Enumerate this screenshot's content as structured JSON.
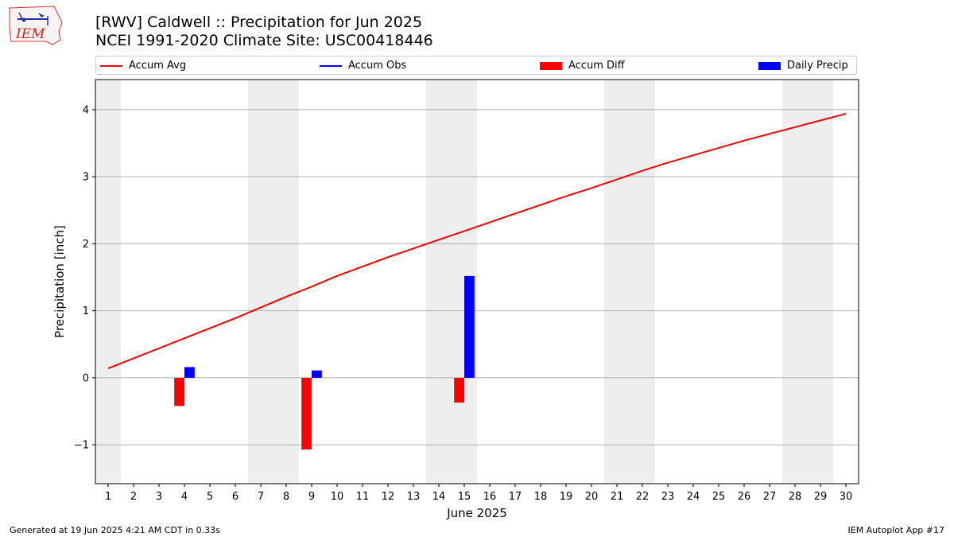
{
  "header": {
    "title_line1": "[RWV] Caldwell :: Precipitation for Jun 2025",
    "title_line2": "NCEI 1991-2020 Climate Site: USC00418446",
    "logo_text": "IEM"
  },
  "legend": {
    "items": [
      {
        "label": "Accum Avg",
        "kind": "line",
        "color": "#ff0000"
      },
      {
        "label": "Accum Obs",
        "kind": "line",
        "color": "#0000ff"
      },
      {
        "label": "Accum Diff",
        "kind": "bar",
        "color": "#ff0000"
      },
      {
        "label": "Daily Precip",
        "kind": "bar",
        "color": "#0000ff"
      }
    ]
  },
  "footer": {
    "generated": "Generated at 19 Jun 2025 4:21 AM CDT in 0.33s",
    "app": "IEM Autoplot App #17"
  },
  "chart_data": {
    "type": "bar",
    "title": "[RWV] Caldwell :: Precipitation for Jun 2025",
    "subtitle": "NCEI 1991-2020 Climate Site: USC00418446",
    "xlabel": "June 2025",
    "ylabel": "Precipitation [inch]",
    "xlim": [
      0.5,
      30.5
    ],
    "ylim": [
      -1.58,
      4.45
    ],
    "yticks": [
      -1,
      0,
      1,
      2,
      3,
      4
    ],
    "ytick_labels": [
      "−1",
      "0",
      "1",
      "2",
      "3",
      "4"
    ],
    "x": [
      1,
      2,
      3,
      4,
      5,
      6,
      7,
      8,
      9,
      10,
      11,
      12,
      13,
      14,
      15,
      16,
      17,
      18,
      19,
      20,
      21,
      22,
      23,
      24,
      25,
      26,
      27,
      28,
      29,
      30
    ],
    "xtick_labels": [
      "1",
      "2",
      "3",
      "4",
      "5",
      "6",
      "7",
      "8",
      "9",
      "10",
      "11",
      "12",
      "13",
      "14",
      "15",
      "16",
      "17",
      "18",
      "19",
      "20",
      "21",
      "22",
      "23",
      "24",
      "25",
      "26",
      "27",
      "28",
      "29",
      "30"
    ],
    "grid": "y",
    "legend_position": "top",
    "weekend_bands": [
      [
        0.5,
        1.5
      ],
      [
        6.5,
        8.5
      ],
      [
        13.5,
        15.5
      ],
      [
        20.5,
        22.5
      ],
      [
        27.5,
        29.5
      ]
    ],
    "weekend_color": "#eeeeee",
    "series": [
      {
        "name": "Accum Avg",
        "kind": "line",
        "color": "#ff0000",
        "values": [
          0.14,
          0.29,
          0.44,
          0.59,
          0.74,
          0.89,
          1.05,
          1.21,
          1.36,
          1.52,
          1.66,
          1.8,
          1.93,
          2.06,
          2.19,
          2.32,
          2.45,
          2.58,
          2.71,
          2.83,
          2.96,
          3.09,
          3.21,
          3.32,
          3.43,
          3.54,
          3.64,
          3.74,
          3.84,
          3.94
        ]
      },
      {
        "name": "Accum Diff",
        "kind": "bar",
        "color": "#ff0000",
        "points": [
          {
            "x": 4,
            "value": -0.42
          },
          {
            "x": 9,
            "value": -1.07
          },
          {
            "x": 15,
            "value": -0.37
          }
        ]
      },
      {
        "name": "Daily Precip",
        "kind": "bar",
        "color": "#0000ff",
        "points": [
          {
            "x": 4,
            "value": 0.16
          },
          {
            "x": 9,
            "value": 0.11
          },
          {
            "x": 15,
            "value": 1.52
          }
        ]
      }
    ]
  }
}
